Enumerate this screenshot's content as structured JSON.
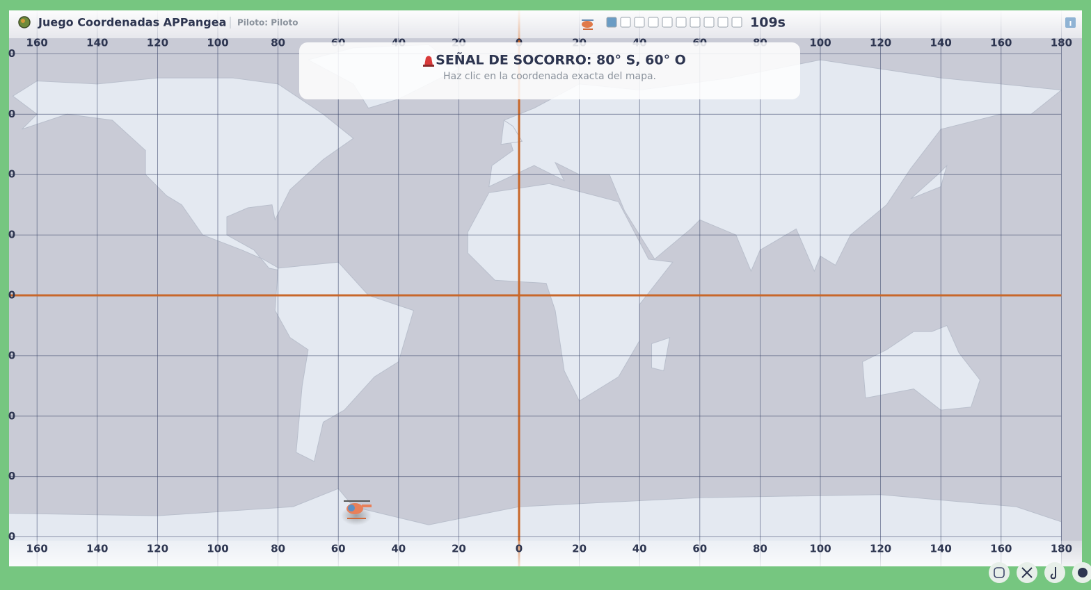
{
  "header": {
    "title": "Juego Coordenadas APPangea",
    "pilot": "Piloto: Piloto",
    "progress": {
      "total": 10,
      "completed": 1
    },
    "timer": "109s"
  },
  "banner": {
    "title": "SEÑAL DE SOCORRO: 80° S, 60° O",
    "subtitle": "Haz clic en la coordenada exacta del mapa."
  },
  "map": {
    "x_labels": [
      "160",
      "140",
      "120",
      "100",
      "80",
      "60",
      "40",
      "20",
      "0",
      "20",
      "40",
      "60",
      "80",
      "100",
      "120",
      "140",
      "160",
      "180"
    ],
    "y_labels": [
      "0",
      "0",
      "0",
      "0",
      "0",
      "0",
      "0",
      "0",
      "0"
    ]
  }
}
